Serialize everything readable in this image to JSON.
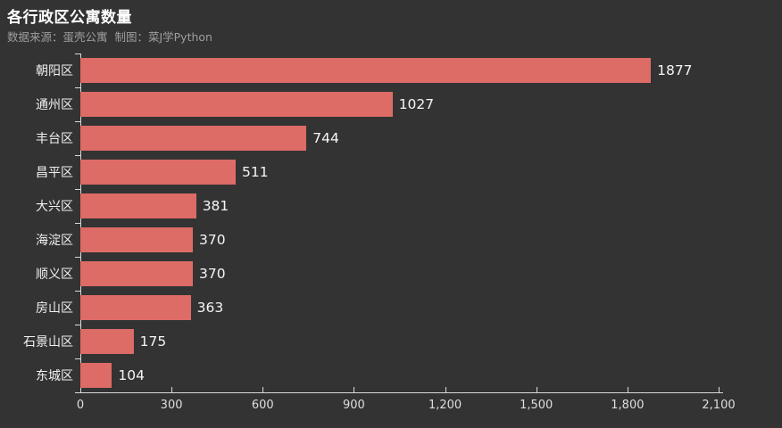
{
  "header": {
    "title": "各行政区公寓数量",
    "subtitle": "数据来源：蛋壳公寓  制图：菜J学Python"
  },
  "chart_data": {
    "type": "bar",
    "orientation": "horizontal",
    "title": "各行政区公寓数量",
    "xlabel": "",
    "ylabel": "",
    "categories": [
      "朝阳区",
      "通州区",
      "丰台区",
      "昌平区",
      "大兴区",
      "海淀区",
      "顺义区",
      "房山区",
      "石景山区",
      "东城区"
    ],
    "values": [
      1877,
      1027,
      744,
      511,
      381,
      370,
      370,
      363,
      175,
      104
    ],
    "xlim": [
      0,
      2100
    ],
    "x_tick_values": [
      0,
      300,
      600,
      900,
      1200,
      1500,
      1800,
      2100
    ],
    "x_tick_labels": [
      "0",
      "300",
      "600",
      "900",
      "1,200",
      "1,500",
      "1,800",
      "2,100"
    ],
    "grid": false,
    "legend": "none",
    "bar_color": "#dd6b66",
    "background_color": "#333333",
    "text_color": "#f0f0f0",
    "axis_color": "#d9d9d9"
  }
}
